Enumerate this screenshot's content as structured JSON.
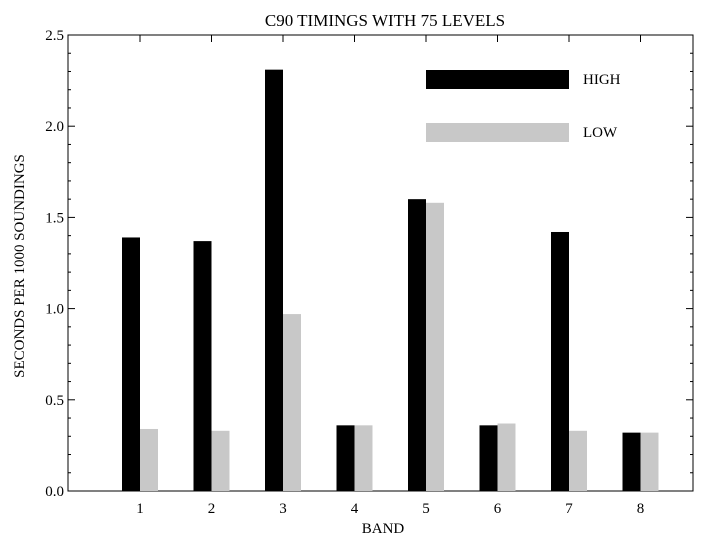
{
  "chart_data": {
    "type": "bar",
    "title": "C90 TIMINGS WITH 75 LEVELS",
    "xlabel": "BAND",
    "ylabel": "SECONDS PER 1000 SOUNDINGS",
    "categories": [
      "1",
      "2",
      "3",
      "4",
      "5",
      "6",
      "7",
      "8"
    ],
    "ylim": [
      0,
      2.5
    ],
    "yticks": [
      "0.0",
      "0.5",
      "1.0",
      "1.5",
      "2.0",
      "2.5"
    ],
    "grid": false,
    "legend_position": "top-right",
    "series": [
      {
        "name": "HIGH",
        "color": "#000000",
        "values": [
          1.39,
          1.37,
          2.31,
          0.36,
          1.6,
          0.36,
          1.42,
          0.32
        ]
      },
      {
        "name": "LOW",
        "color": "#c8c8c8",
        "values": [
          0.34,
          0.33,
          0.97,
          0.36,
          1.58,
          0.37,
          0.33,
          0.32
        ]
      }
    ]
  }
}
